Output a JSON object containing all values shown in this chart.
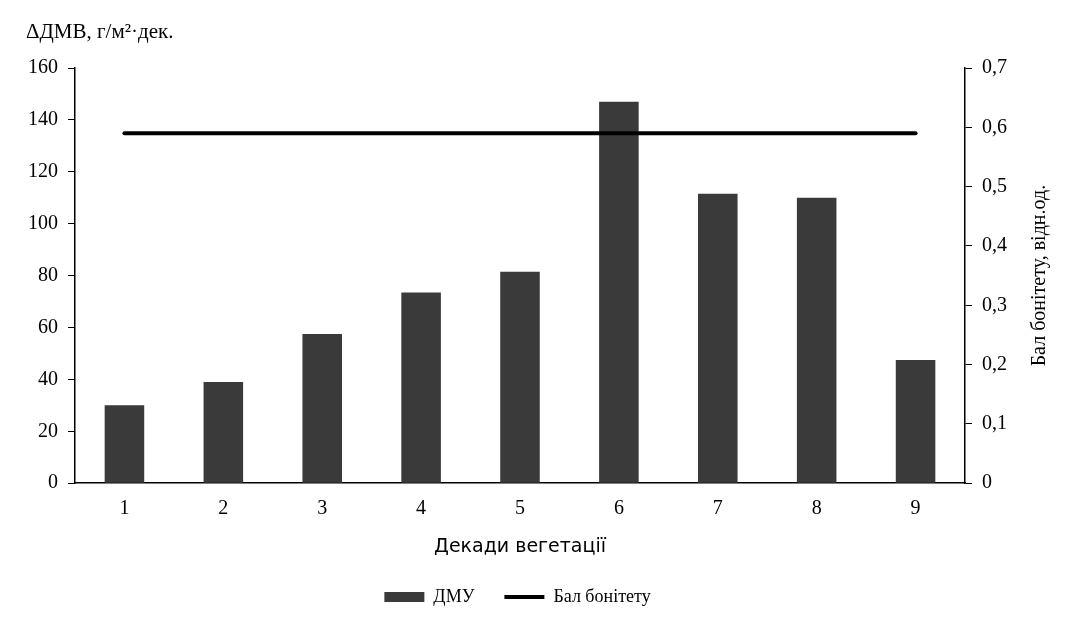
{
  "chart_data": {
    "type": "bar",
    "ylabel": "ΔДМВ, г/м²·дек.",
    "xlabel": "Декади вегетації",
    "y2label": "Бал бонітету, відн.од.",
    "categories": [
      "1",
      "2",
      "3",
      "4",
      "5",
      "6",
      "7",
      "8",
      "9"
    ],
    "series": [
      {
        "name": "ДМУ",
        "color": "#3a3a3a",
        "values": [
          30,
          39,
          57.5,
          73.5,
          81.5,
          147,
          111.5,
          110,
          47.5
        ]
      },
      {
        "name": "Бал бонітету",
        "type": "line",
        "axis": "y2",
        "color": "#000000",
        "marker": "none",
        "line_style": "solid",
        "values": [
          0.59,
          0.59,
          0.59,
          0.59,
          0.59,
          0.59,
          0.59,
          0.59,
          0.59
        ]
      }
    ],
    "ylim": [
      0,
      160
    ],
    "yticks": [
      0,
      20,
      40,
      60,
      80,
      100,
      120,
      140,
      160
    ],
    "y2lim": [
      0,
      0.7
    ],
    "y2ticks": [
      0,
      {
        "value": 0.1,
        "label": "0,1"
      },
      {
        "value": 0.2,
        "label": "0,2"
      },
      {
        "value": 0.3,
        "label": "0,3"
      },
      {
        "value": 0.4,
        "label": "0,4"
      },
      {
        "value": 0.5,
        "label": "0,5"
      },
      {
        "value": 0.6,
        "label": "0,6"
      },
      {
        "value": 0.7,
        "label": "0,7"
      }
    ],
    "grid": false,
    "legend": "bottom"
  }
}
